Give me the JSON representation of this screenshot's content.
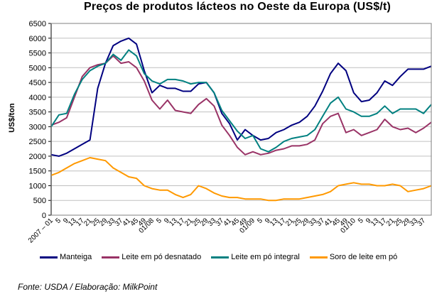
{
  "chart_data": {
    "type": "line",
    "title": "Preços de produtos lácteos no Oeste da Europa (US$/t)",
    "xlabel": "",
    "ylabel": "US$/ton",
    "ylim": [
      0,
      6500
    ],
    "yticks": [
      0,
      500,
      1000,
      1500,
      2000,
      2500,
      3000,
      3500,
      4000,
      4500,
      5000,
      5500,
      6000,
      6500
    ],
    "grid": true,
    "legend_position": "bottom",
    "x": [
      "2007 – 01",
      "5",
      "9",
      "13",
      "17",
      "21",
      "25",
      "29",
      "33",
      "37",
      "41",
      "45",
      "49",
      "01/08",
      "5",
      "9",
      "13",
      "17",
      "21",
      "25",
      "29",
      "33",
      "37",
      "41",
      "45",
      "49",
      "01/09",
      "5",
      "9",
      "13",
      "17",
      "21",
      "25",
      "29",
      "33",
      "37",
      "41",
      "45",
      "49",
      "01/10",
      "5",
      "9",
      "13",
      "17",
      "21",
      "25",
      "29",
      "33",
      "37",
      ""
    ],
    "series": [
      {
        "name": "Manteiga",
        "color": "#000080",
        "values": [
          2050,
          2000,
          2100,
          2250,
          2400,
          2550,
          4300,
          5150,
          5750,
          5900,
          6000,
          5800,
          4900,
          4150,
          4400,
          4300,
          4300,
          4200,
          4200,
          4450,
          4500,
          4150,
          3450,
          3100,
          2550,
          2900,
          2700,
          2550,
          2600,
          2800,
          2900,
          3050,
          3150,
          3350,
          3700,
          4200,
          4800,
          5150,
          4900,
          4150,
          3850,
          3900,
          4150,
          4550,
          4400,
          4700,
          4950,
          4950,
          4950,
          5050
        ]
      },
      {
        "name": "Leite em pó desnatado",
        "color": "#993366",
        "values": [
          3050,
          3150,
          3300,
          4000,
          4700,
          5000,
          5100,
          5150,
          5400,
          5150,
          5200,
          5000,
          4550,
          3900,
          3600,
          3900,
          3550,
          3500,
          3450,
          3750,
          3950,
          3700,
          3050,
          2700,
          2300,
          2050,
          2150,
          2050,
          2100,
          2200,
          2250,
          2350,
          2350,
          2400,
          2550,
          3100,
          3350,
          3450,
          2800,
          2900,
          2700,
          2800,
          2900,
          3250,
          3000,
          2900,
          2950,
          2800,
          2950,
          3150
        ]
      },
      {
        "name": "Leite em pó integral",
        "color": "#008080",
        "values": [
          3000,
          3400,
          3450,
          4100,
          4600,
          4900,
          5050,
          5150,
          5450,
          5250,
          5600,
          5400,
          4800,
          4550,
          4450,
          4600,
          4600,
          4550,
          4450,
          4500,
          4500,
          4150,
          3550,
          3200,
          2850,
          2600,
          2700,
          2250,
          2150,
          2300,
          2500,
          2600,
          2650,
          2700,
          2900,
          3350,
          3800,
          4000,
          3600,
          3500,
          3350,
          3350,
          3450,
          3700,
          3450,
          3600,
          3600,
          3600,
          3450,
          3750
        ]
      },
      {
        "name": "Soro de leite em pó",
        "color": "#FF9900",
        "values": [
          1350,
          1450,
          1600,
          1750,
          1850,
          1950,
          1900,
          1850,
          1600,
          1450,
          1300,
          1250,
          1000,
          900,
          850,
          850,
          700,
          600,
          700,
          1000,
          900,
          750,
          650,
          600,
          600,
          550,
          550,
          550,
          500,
          500,
          550,
          550,
          550,
          600,
          650,
          700,
          800,
          1000,
          1050,
          1100,
          1050,
          1050,
          1000,
          1000,
          1050,
          1000,
          800,
          850,
          900,
          1000
        ]
      }
    ]
  },
  "legend": {
    "items": [
      "Manteiga",
      "Leite em pó desnatado",
      "Leite em pó integral",
      "Soro de leite em pó"
    ]
  },
  "footer": {
    "source": "Fonte: USDA / Elaboração: MilkPoint"
  }
}
